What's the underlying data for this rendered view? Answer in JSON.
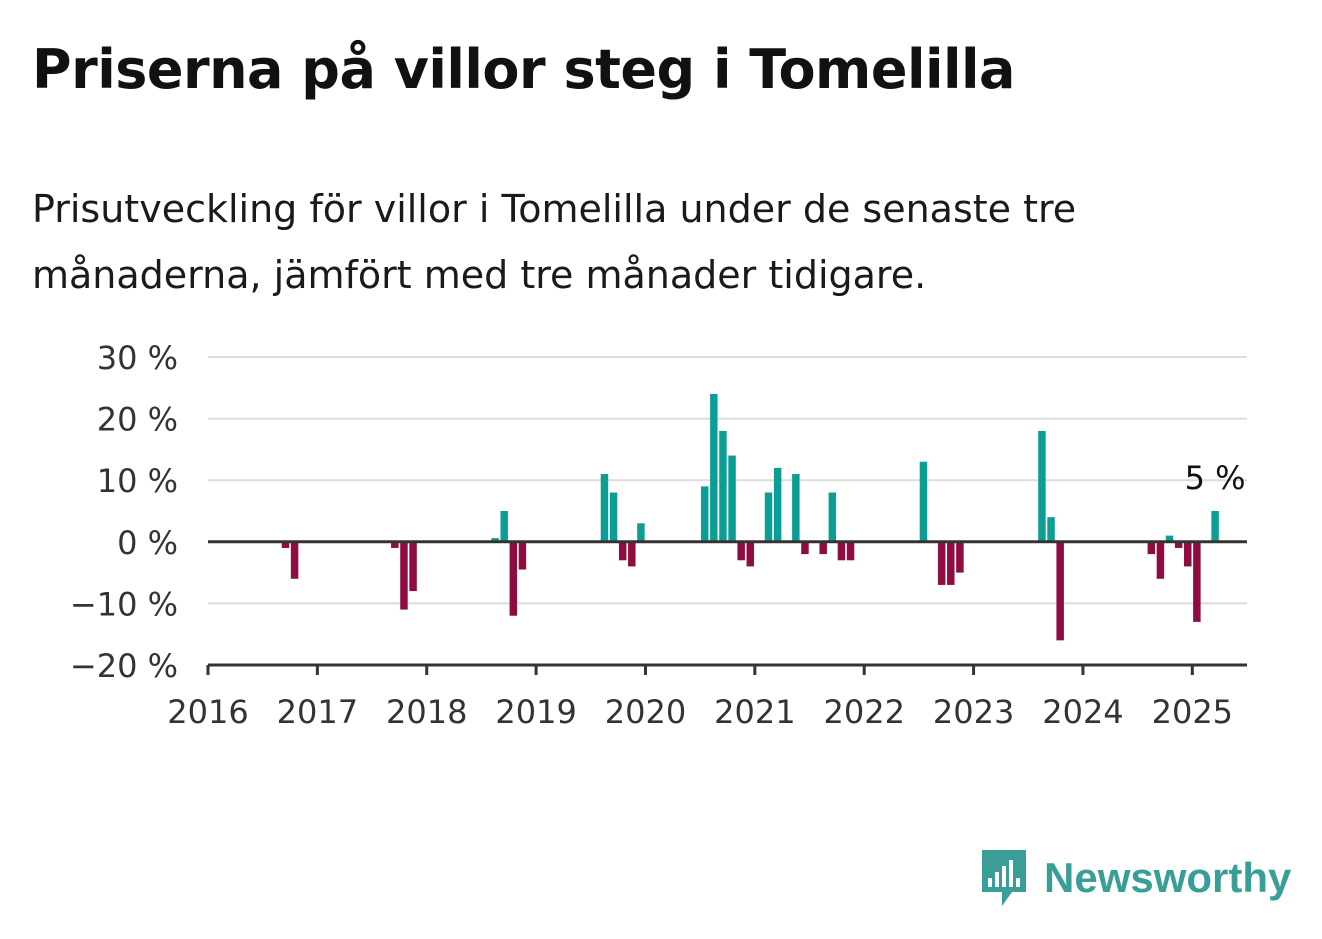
{
  "title": "Priserna på villor steg i Tomelilla",
  "subtitle": "Prisutveckling för villor i Tomelilla under de senaste tre månaderna, jämfört med tre månader tidigare.",
  "brand": {
    "name": "Newsworthy",
    "icon": "bar-chart-speech-bubble-icon",
    "color": "#3a9e98"
  },
  "colors": {
    "positive": "#0c9e94",
    "negative": "#8e0c3f",
    "grid": "#dcdcdc",
    "axis": "#333333"
  },
  "chart_data": {
    "type": "bar",
    "x_unit": "month",
    "ylim": [
      -20,
      30
    ],
    "yticks": [
      30,
      20,
      10,
      0,
      -10,
      -20
    ],
    "ytick_labels": [
      "30 %",
      "20 %",
      "10 %",
      "0 %",
      "−10 %",
      "−20 %"
    ],
    "xlim": [
      "2016-01",
      "2025-07"
    ],
    "xtick_labels": [
      "2016",
      "2017",
      "2018",
      "2019",
      "2020",
      "2021",
      "2022",
      "2023",
      "2024",
      "2025"
    ],
    "grid": true,
    "last_value_label": "5 %",
    "points": [
      {
        "month": "2016-09",
        "value": -1
      },
      {
        "month": "2016-10",
        "value": -6
      },
      {
        "month": "2017-09",
        "value": -1
      },
      {
        "month": "2017-10",
        "value": -11
      },
      {
        "month": "2017-11",
        "value": -8
      },
      {
        "month": "2018-08",
        "value": 0.6
      },
      {
        "month": "2018-09",
        "value": 5
      },
      {
        "month": "2018-10",
        "value": -12
      },
      {
        "month": "2018-11",
        "value": -4.5
      },
      {
        "month": "2019-08",
        "value": 11
      },
      {
        "month": "2019-09",
        "value": 8
      },
      {
        "month": "2019-10",
        "value": -3
      },
      {
        "month": "2019-11",
        "value": -4
      },
      {
        "month": "2019-12",
        "value": 3
      },
      {
        "month": "2020-07",
        "value": 9
      },
      {
        "month": "2020-08",
        "value": 24
      },
      {
        "month": "2020-09",
        "value": 18
      },
      {
        "month": "2020-10",
        "value": 14
      },
      {
        "month": "2020-11",
        "value": -3
      },
      {
        "month": "2020-12",
        "value": -4
      },
      {
        "month": "2021-02",
        "value": 8
      },
      {
        "month": "2021-03",
        "value": 12
      },
      {
        "month": "2021-05",
        "value": 11
      },
      {
        "month": "2021-06",
        "value": -2
      },
      {
        "month": "2021-08",
        "value": -2
      },
      {
        "month": "2021-09",
        "value": 8
      },
      {
        "month": "2021-10",
        "value": -3
      },
      {
        "month": "2021-11",
        "value": -3
      },
      {
        "month": "2022-07",
        "value": 13
      },
      {
        "month": "2022-09",
        "value": -7
      },
      {
        "month": "2022-10",
        "value": -7
      },
      {
        "month": "2022-11",
        "value": -5
      },
      {
        "month": "2023-08",
        "value": 18
      },
      {
        "month": "2023-09",
        "value": 4
      },
      {
        "month": "2023-10",
        "value": -16
      },
      {
        "month": "2024-08",
        "value": -2
      },
      {
        "month": "2024-09",
        "value": -6
      },
      {
        "month": "2024-10",
        "value": 1
      },
      {
        "month": "2024-11",
        "value": -1
      },
      {
        "month": "2024-12",
        "value": -4
      },
      {
        "month": "2025-01",
        "value": -13
      },
      {
        "month": "2025-03",
        "value": 5
      }
    ]
  }
}
